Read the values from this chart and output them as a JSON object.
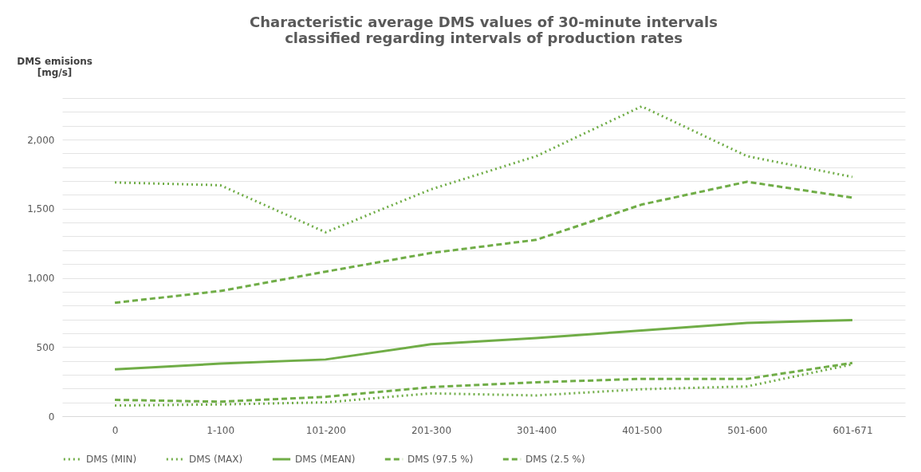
{
  "chart_data": {
    "type": "line",
    "title": "Characteristic average DMS values of 30-minute intervals\nclassified regarding intervals of production rates",
    "ylabel": "DMS emisions\n[mg/s]",
    "categories": [
      "0",
      "1-100",
      "101-200",
      "201-300",
      "301-400",
      "401-500",
      "501-600",
      "601-671"
    ],
    "series": [
      {
        "name": "DMS (MIN)",
        "color": "#70ad47",
        "line_style": "dotted",
        "values": [
          77,
          85,
          100,
          165,
          150,
          195,
          215,
          375
        ]
      },
      {
        "name": "DMS (MAX)",
        "color": "#70ad47",
        "line_style": "dotted",
        "values": [
          1690,
          1670,
          1330,
          1640,
          1880,
          2240,
          1880,
          1730
        ]
      },
      {
        "name": "DMS (MEAN)",
        "color": "#70ad47",
        "line_style": "solid",
        "values": [
          338,
          380,
          410,
          520,
          565,
          620,
          675,
          695
        ]
      },
      {
        "name": "DMS (97.5 %)",
        "color": "#70ad47",
        "line_style": "dashed",
        "values": [
          820,
          905,
          1045,
          1180,
          1275,
          1530,
          1695,
          1580
        ]
      },
      {
        "name": "DMS (2.5 %)",
        "color": "#70ad47",
        "line_style": "dashed",
        "values": [
          118,
          105,
          140,
          210,
          245,
          270,
          270,
          385
        ]
      }
    ],
    "ylim": [
      0,
      2300
    ],
    "yticks": [
      0,
      {
        "value": 100,
        "label": null
      },
      {
        "value": 200,
        "label": null
      },
      {
        "value": 300,
        "label": null
      },
      {
        "value": 400,
        "label": null
      },
      {
        "value": 500,
        "label": "500"
      },
      {
        "value": 600,
        "label": null
      },
      {
        "value": 700,
        "label": null
      },
      {
        "value": 800,
        "label": null
      },
      {
        "value": 900,
        "label": null
      },
      {
        "value": 1000,
        "label": "1,000"
      },
      {
        "value": 1100,
        "label": null
      },
      {
        "value": 1200,
        "label": null
      },
      {
        "value": 1300,
        "label": null
      },
      {
        "value": 1400,
        "label": null
      },
      {
        "value": 1500,
        "label": "1,500"
      },
      {
        "value": 1600,
        "label": null
      },
      {
        "value": 1700,
        "label": null
      },
      {
        "value": 1800,
        "label": null
      },
      {
        "value": 1900,
        "label": null
      },
      {
        "value": 2000,
        "label": "2,000"
      },
      {
        "value": 2100,
        "label": null
      },
      {
        "value": 2200,
        "label": null
      },
      {
        "value": 2300,
        "label": null
      }
    ],
    "grid": "y",
    "legend": "bottom",
    "marker": "none"
  }
}
